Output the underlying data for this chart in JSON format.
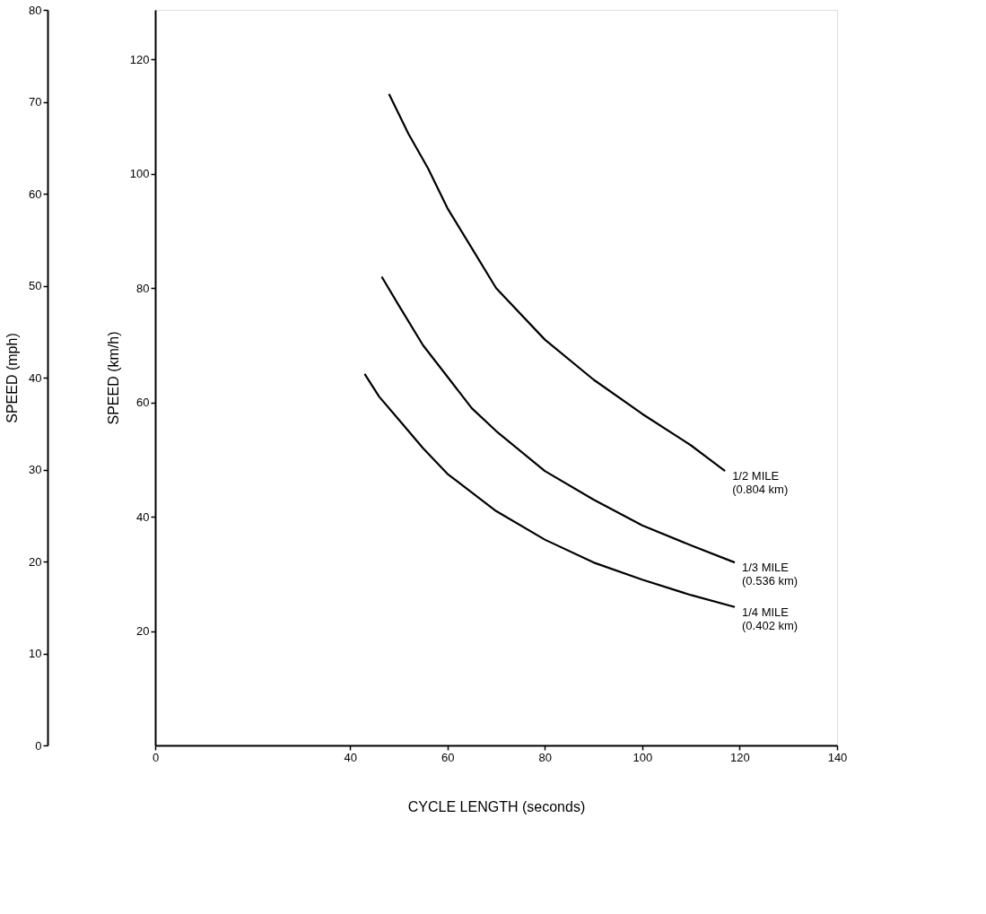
{
  "chart_data": {
    "type": "line",
    "xlabel": "CYCLE LENGTH (seconds)",
    "ylabel": "SPEED (km/h)",
    "y2label": "SPEED (mph)",
    "xlim": [
      0,
      140
    ],
    "xticks": [
      0,
      40,
      60,
      80,
      100,
      120,
      140
    ],
    "ylim": [
      0,
      128.7
    ],
    "yticks": [
      20,
      40,
      60,
      80,
      100,
      120
    ],
    "y2lim": [
      0,
      80
    ],
    "y2ticks": [
      0,
      10,
      20,
      30,
      40,
      50,
      60,
      70,
      80
    ],
    "grid": false,
    "marker": "none",
    "line_style": "solid",
    "series": [
      {
        "name": "1/2 MILE (0.804 km)",
        "color": "#000000",
        "x": [
          48,
          52,
          56,
          60,
          65,
          70,
          80,
          90,
          100,
          110,
          117
        ],
        "values": [
          114,
          107,
          101,
          94,
          87,
          80,
          71,
          64,
          58,
          52.5,
          48
        ]
      },
      {
        "name": "1/3 MILE (0.536 km)",
        "color": "#000000",
        "x": [
          46.5,
          50,
          55,
          60,
          65,
          70,
          80,
          90,
          100,
          110,
          119
        ],
        "values": [
          82,
          77,
          70,
          64.5,
          59,
          55,
          48,
          43,
          38.5,
          35,
          32
        ]
      },
      {
        "name": "1/4 MILE (0.402 km)",
        "color": "#000000",
        "x": [
          43,
          46,
          50,
          55,
          60,
          70,
          80,
          90,
          100,
          110,
          119
        ],
        "values": [
          65,
          61,
          57,
          52,
          47.5,
          41,
          36,
          32,
          29,
          26.3,
          24.2
        ]
      }
    ]
  }
}
